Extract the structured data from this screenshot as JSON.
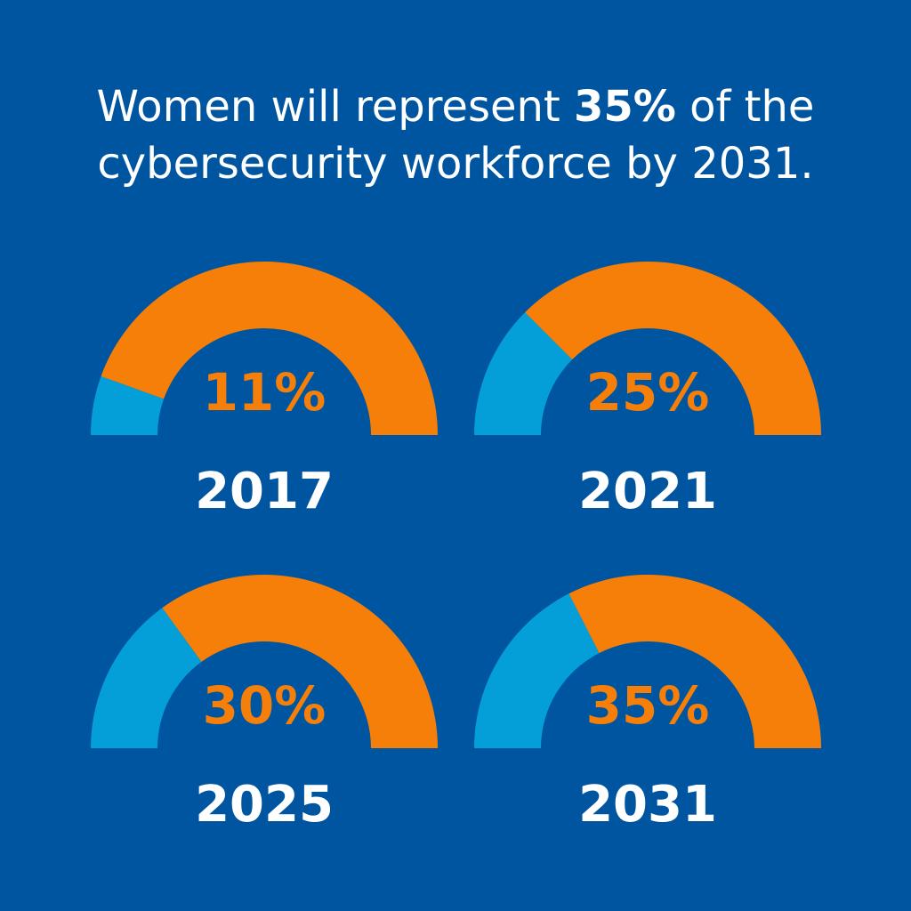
{
  "headline": {
    "before": "Women will represent ",
    "highlight": "35%",
    "after": " of the",
    "line2": "cybersecurity workforce by 2031."
  },
  "colors": {
    "background": "#0055a0",
    "women": "#049fd9",
    "remainder": "#f57f08",
    "percent_text": "#f57f08",
    "year_text": "#ffffff",
    "headline_text": "#ffffff"
  },
  "chart_data": {
    "type": "gauge",
    "title": "Women will represent 35% of the cybersecurity workforce by 2031.",
    "unit": "%",
    "categories": [
      "2017",
      "2021",
      "2025",
      "2031"
    ],
    "values": [
      11,
      25,
      30,
      35
    ],
    "value_labels": [
      "11%",
      "25%",
      "30%",
      "35%"
    ],
    "max": 100
  }
}
